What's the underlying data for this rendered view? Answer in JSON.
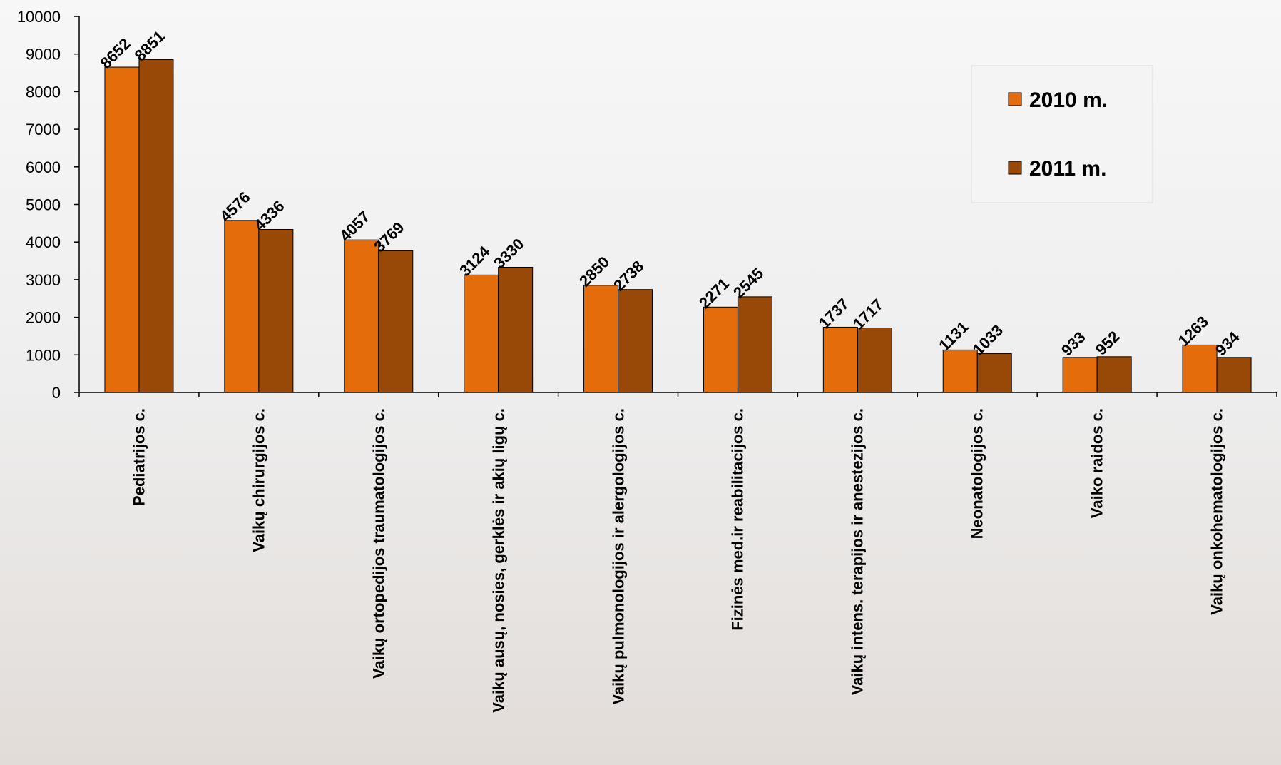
{
  "chart_data": {
    "type": "bar",
    "categories": [
      "Pediatrijos c.",
      "Vaikų chirurgijos c.",
      "Vaikų ortopedijos traumatologijos c.",
      "Vaikų ausų, nosies, gerklės ir akių ligų c.",
      "Vaikų pulmonologijos ir alergologijos c.",
      "Fizinės med.ir reabilitacijos c.",
      "Vaikų intens. terapijos ir anestezijos c.",
      "Neonatologijos c.",
      "Vaiko raidos c.",
      "Vaikų onkohematologijos c."
    ],
    "series": [
      {
        "name": "2010 m.",
        "color": "#e46c0a",
        "values": [
          8652,
          4576,
          4057,
          3124,
          2850,
          2271,
          1737,
          1131,
          933,
          1263
        ]
      },
      {
        "name": "2011 m.",
        "color": "#984807",
        "values": [
          8851,
          4336,
          3769,
          3330,
          2738,
          2545,
          1717,
          1033,
          952,
          934
        ]
      }
    ],
    "ylim": [
      0,
      10000
    ],
    "yticks": [
      0,
      1000,
      2000,
      3000,
      4000,
      5000,
      6000,
      7000,
      8000,
      9000,
      10000
    ],
    "legend": "upper right"
  }
}
